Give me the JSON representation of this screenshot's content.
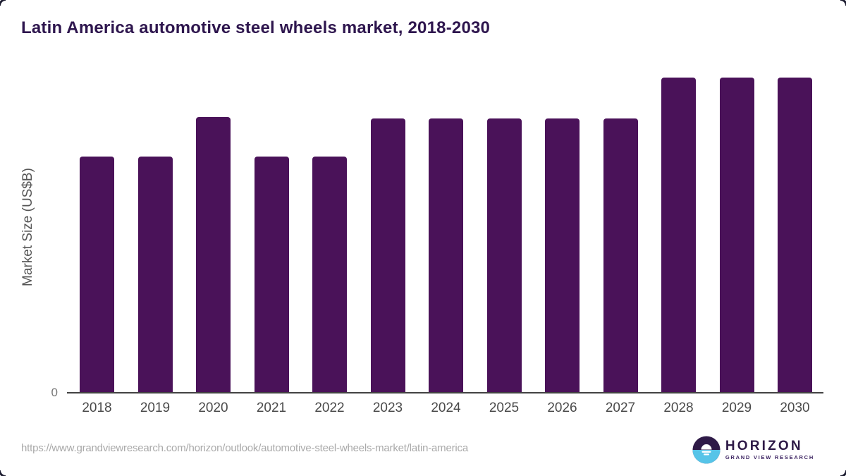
{
  "chart_data": {
    "type": "bar",
    "title": "Latin America automotive steel wheels market, 2018-2030",
    "ylabel": "Market Size (US$B)",
    "xlabel": "",
    "categories": [
      "2018",
      "2019",
      "2020",
      "2021",
      "2022",
      "2023",
      "2024",
      "2025",
      "2026",
      "2027",
      "2028",
      "2029",
      "2030"
    ],
    "values": [
      0.75,
      0.75,
      0.875,
      0.75,
      0.75,
      0.87,
      0.87,
      0.87,
      0.87,
      0.87,
      1.0,
      1.0,
      1.0
    ],
    "ylim": [
      0,
      1.0
    ],
    "y_axis": {
      "tick_labels": [
        "0"
      ]
    },
    "value_note": "y-axis shows only a 0 tick; bar values are relative estimates scaled so the tallest bars (2028-2030) = 1.0",
    "grid": false,
    "legend": false,
    "bar_color": "#4a1259"
  },
  "footer": {
    "source_url": "https://www.grandviewresearch.com/horizon/outlook/automotive-steel-wheels-market/latin-america",
    "logo": {
      "brand": "HORIZON",
      "sub_brand": "GRAND VIEW RESEARCH",
      "icon": "horizon-sunset-circle-icon",
      "icon_colors": {
        "top": "#2e1a47",
        "bottom": "#56c4e8",
        "glyph": "#ffffff"
      }
    }
  },
  "colors": {
    "title": "#2e164e",
    "axis_line": "#434343",
    "tick_label": "#4a4a4a",
    "zero_label": "#767676",
    "url_text": "#a9a9a9",
    "background": "#ffffff"
  }
}
